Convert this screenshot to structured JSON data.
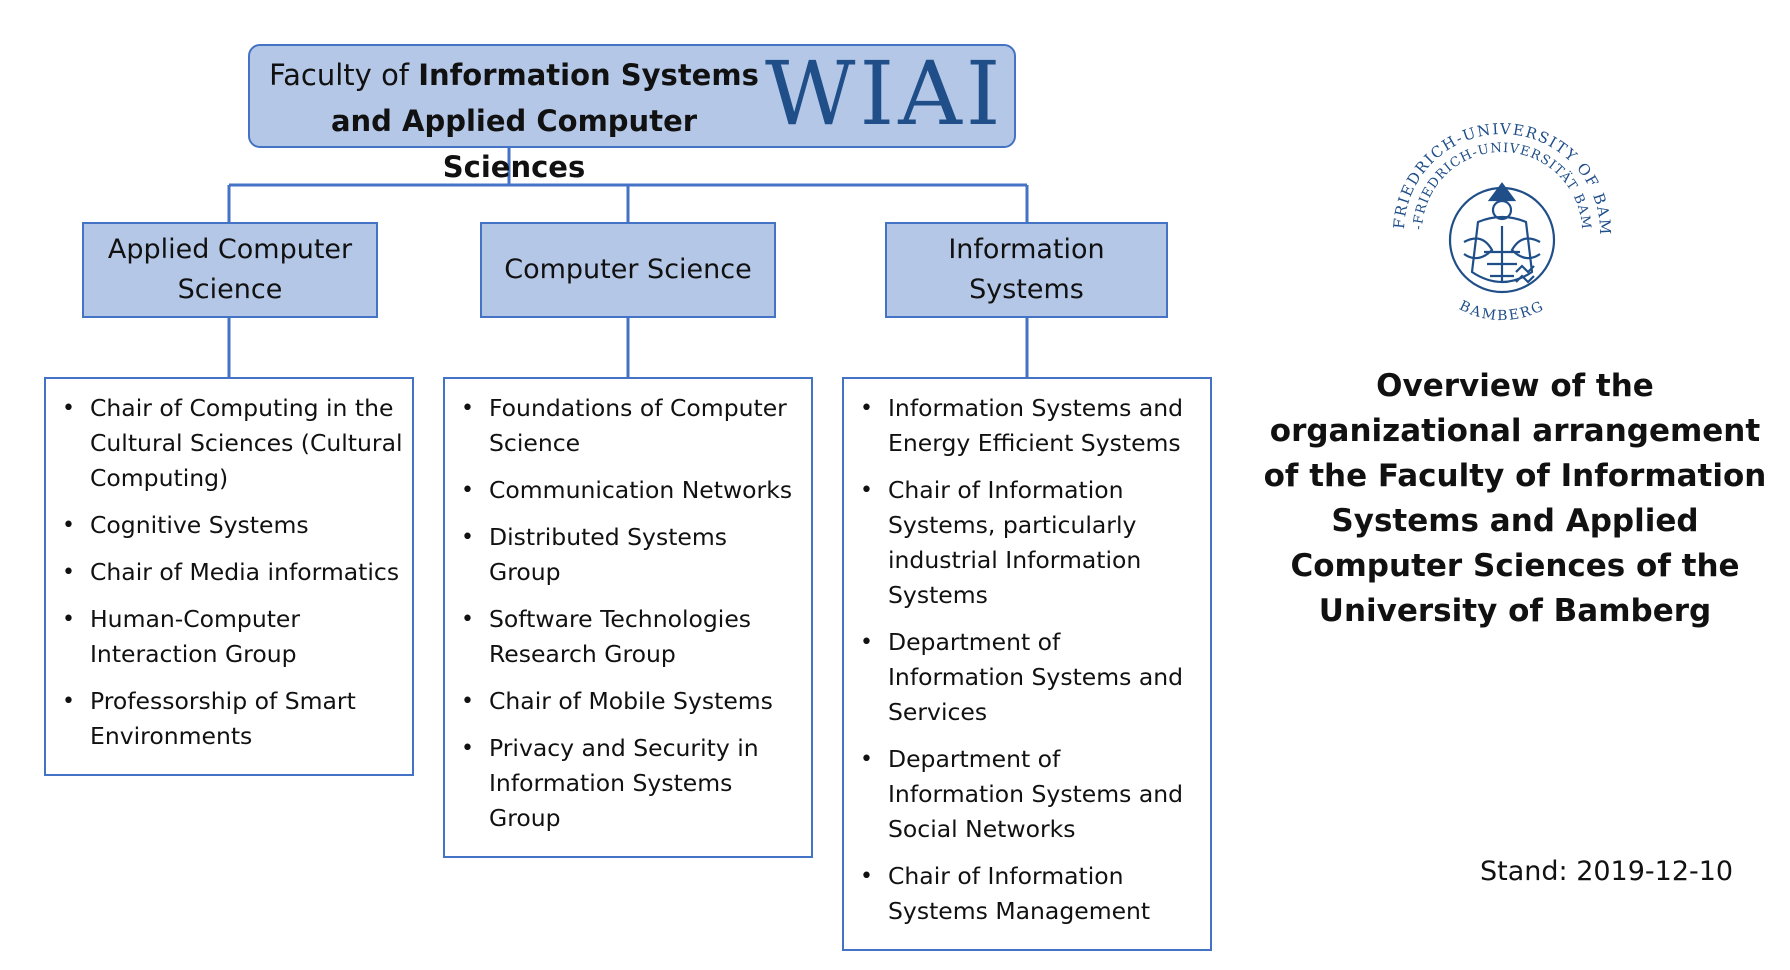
{
  "faculty": {
    "line1_prefix": "Faculty of",
    "line1_bold": "Information Systems",
    "line2_bold": "and Applied Computer Sciences",
    "logo_text": "WIAI"
  },
  "departments": [
    {
      "name": "Applied Computer Science",
      "items": [
        "Chair of Computing in the Cultural Sciences (Cultural Computing)",
        "Cognitive Systems",
        "Chair of Media informatics",
        "Human-Computer Interaction Group",
        "Professorship of Smart Environments"
      ]
    },
    {
      "name": "Computer Science",
      "items": [
        "Foundations of Computer Science",
        "Communication Networks",
        "Distributed Systems Group",
        "Software Technologies Research Group",
        "Chair of Mobile Systems",
        "Privacy and Security in Information Systems Group"
      ]
    },
    {
      "name": "Information Systems",
      "items": [
        "Information Systems and Energy Efficient Systems",
        "Chair of Information Systems, particularly industrial Information Systems",
        "Department of Information Systems and Services",
        "Department of Information Systems and Social Networks",
        "Chair of Information Systems Management"
      ]
    }
  ],
  "seal": {
    "ring_text": "OTTO-FRIEDRICH-UNIVERSITY OF BAMBERG",
    "inner_text": "OTTO-FRIEDRICH-UNIVERSITÄT BAMBERG",
    "bottom_text": "BAMBERG",
    "color": "#1f4e89"
  },
  "overview_text": "Overview of the organizational arrangement of the Faculty of Information Systems and Applied Computer Sciences of the University of Bamberg",
  "stand": "Stand: 2019-12-10",
  "colors": {
    "box_fill": "#b4c7e7",
    "box_border": "#4472c4",
    "logo": "#1f4e89"
  }
}
